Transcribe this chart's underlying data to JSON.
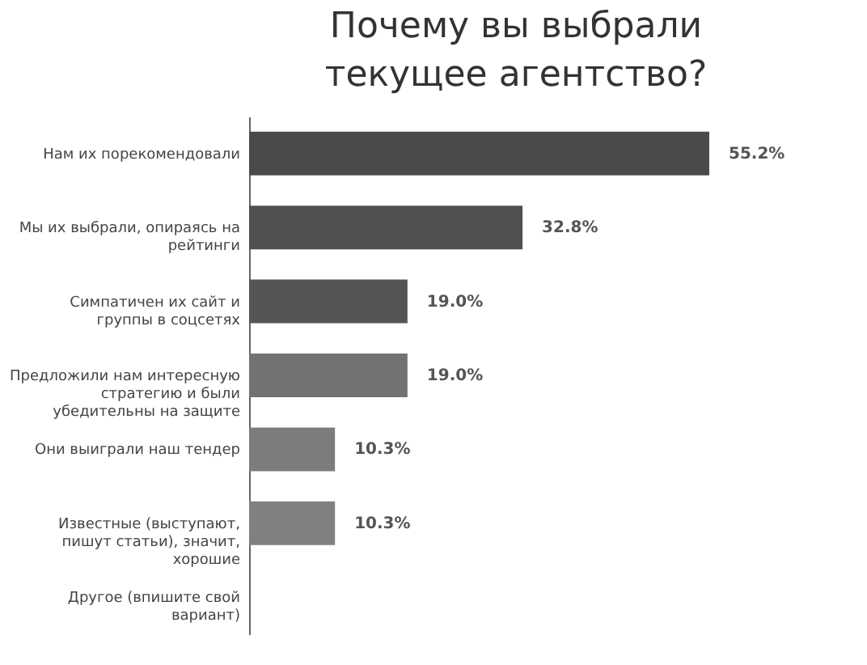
{
  "chart_data": {
    "type": "bar",
    "orientation": "horizontal",
    "title": "Почему вы выбрали текущее агентство?",
    "categories": [
      "Нам их порекомендовали",
      "Мы их выбрали, опираясь на рейтинги",
      "Симпатичен их сайт и группы в соцсетях",
      "Предложили нам интересную стратегию и были убедительны на защите",
      "Они выиграли наш тендер",
      "Известные (выступают, пишут статьи), значит, хорошие",
      "Другое (впишите свой вариант)"
    ],
    "values": [
      55.2,
      32.8,
      19.0,
      19.0,
      10.3,
      10.3,
      0
    ],
    "value_labels": [
      "55.2%",
      "32.8%",
      "19.0%",
      "19.0%",
      "10.3%",
      "10.3%",
      null
    ],
    "colors": [
      "#4a4a4a",
      "#505050",
      "#555555",
      "#727272",
      "#7c7c7c",
      "#808080",
      "#8a8a8a"
    ]
  }
}
